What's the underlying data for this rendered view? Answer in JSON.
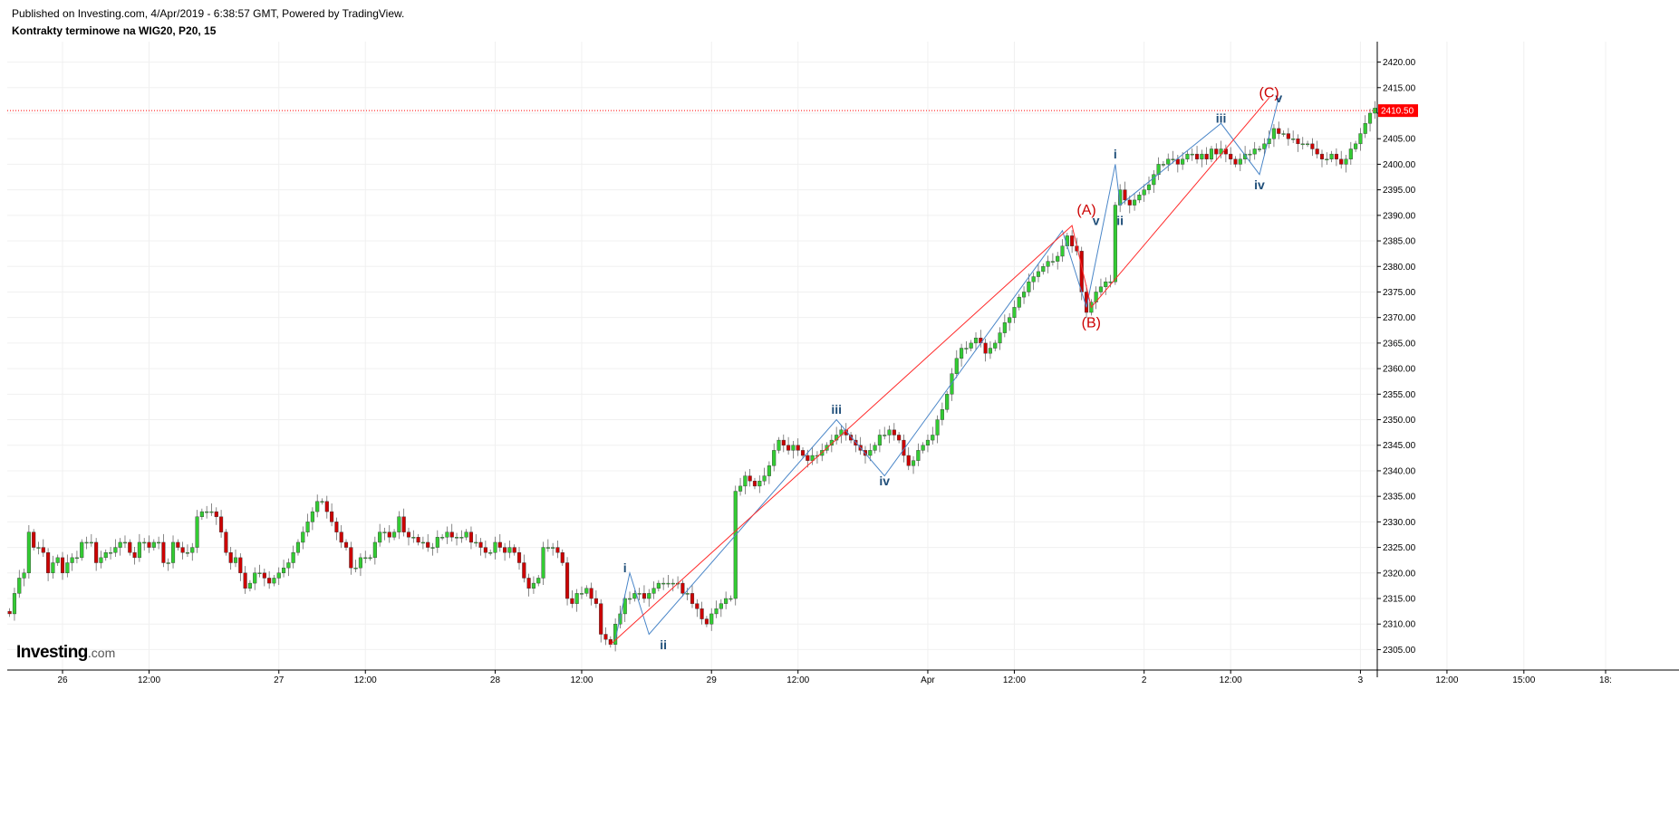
{
  "header": {
    "published_line": "Published on Investing.com, 4/Apr/2019 - 6:38:57 GMT, Powered by TradingView.",
    "symbol_line": "Kontrakty terminowe na WIG20, P20, 15"
  },
  "logo": {
    "brand": "Investing",
    "suffix": ".com"
  },
  "colors": {
    "up": "#33cc33",
    "down": "#cc0000",
    "grid": "#f0f0f0",
    "price_line": "#ff0000",
    "wave_blue": "#4a86c8",
    "wave_red": "#ff2b2b",
    "label_blue": "#1f4e79",
    "label_red": "#cc0000"
  },
  "chart_data": {
    "type": "candlestick",
    "title": "Kontrakty terminowe na WIG20, P20, 15",
    "interval": "15",
    "ylim": [
      2301,
      2424
    ],
    "y_ticks": [
      2305,
      2310,
      2315,
      2320,
      2325,
      2330,
      2335,
      2340,
      2345,
      2350,
      2355,
      2360,
      2365,
      2370,
      2375,
      2380,
      2385,
      2390,
      2395,
      2400,
      2405,
      2410,
      2415,
      2420
    ],
    "y_tick_labels": [
      "2305.00",
      "2310.00",
      "2315.00",
      "2320.00",
      "2325.00",
      "2330.00",
      "2335.00",
      "2340.00",
      "2345.00",
      "2350.00",
      "2355.00",
      "2360.00",
      "2365.00",
      "2370.00",
      "2375.00",
      "2380.00",
      "2385.00",
      "2390.00",
      "2395.00",
      "2400.00",
      "2405.00",
      "2410.00",
      "2415.00",
      "2420.00"
    ],
    "x_ticks": [
      {
        "label": "26",
        "bar": 11
      },
      {
        "label": "12:00",
        "bar": 29
      },
      {
        "label": "27",
        "bar": 56
      },
      {
        "label": "12:00",
        "bar": 74
      },
      {
        "label": "28",
        "bar": 101
      },
      {
        "label": "12:00",
        "bar": 119
      },
      {
        "label": "29",
        "bar": 146
      },
      {
        "label": "12:00",
        "bar": 164
      },
      {
        "label": "Apr",
        "bar": 191
      },
      {
        "label": "12:00",
        "bar": 209
      },
      {
        "label": "2",
        "bar": 236
      },
      {
        "label": "12:00",
        "bar": 254
      },
      {
        "label": "3",
        "bar": 281
      },
      {
        "label": "12:00",
        "bar": 299
      },
      {
        "label": "15:00",
        "bar": 315
      },
      {
        "label": "18:",
        "bar": 332
      }
    ],
    "last_price": 2410.5,
    "last_price_label": "2410.50",
    "closes": [
      2312,
      2316,
      2319,
      2320,
      2328,
      2325,
      2325,
      2324,
      2320,
      2322,
      2323,
      2320,
      2322,
      2323,
      2323,
      2326,
      2326,
      2326,
      2322,
      2323,
      2324,
      2324,
      2325,
      2326,
      2326,
      2324,
      2323,
      2326,
      2326,
      2325,
      2326,
      2326,
      2322,
      2322,
      2326,
      2325,
      2324,
      2324,
      2325,
      2331,
      2332,
      2332,
      2332,
      2331,
      2328,
      2324,
      2322,
      2323,
      2320,
      2317,
      2318,
      2320,
      2320,
      2319,
      2318,
      2319,
      2320,
      2321,
      2322,
      2324,
      2326,
      2328,
      2330,
      2332,
      2334,
      2334,
      2332,
      2330,
      2328,
      2326,
      2325,
      2321,
      2321,
      2323,
      2323,
      2323,
      2326,
      2328,
      2328,
      2327,
      2328,
      2331,
      2328,
      2327,
      2327,
      2326,
      2326,
      2325,
      2325,
      2327,
      2327,
      2328,
      2327,
      2327,
      2327,
      2328,
      2326,
      2326,
      2325,
      2324,
      2324,
      2326,
      2325,
      2324,
      2325,
      2324,
      2322,
      2319,
      2317,
      2318,
      2319,
      2325,
      2325,
      2325,
      2324,
      2322,
      2315,
      2314,
      2316,
      2316,
      2317,
      2315,
      2314,
      2308,
      2307,
      2306,
      2310,
      2312,
      2315,
      2315,
      2316,
      2316,
      2315,
      2316,
      2317,
      2318,
      2318,
      2318,
      2318,
      2318,
      2316,
      2316,
      2314,
      2313,
      2311,
      2310,
      2312,
      2313,
      2314,
      2315,
      2315,
      2336,
      2337,
      2339,
      2338,
      2337,
      2338,
      2339,
      2341,
      2344,
      2346,
      2345,
      2344,
      2345,
      2344,
      2343,
      2342,
      2343,
      2343,
      2344,
      2345,
      2346,
      2347,
      2348,
      2347,
      2346,
      2345,
      2344,
      2343,
      2344,
      2345,
      2347,
      2347,
      2348,
      2347,
      2346,
      2343,
      2341,
      2342,
      2344,
      2345,
      2346,
      2347,
      2350,
      2352,
      2355,
      2359,
      2362,
      2364,
      2364,
      2365,
      2366,
      2365,
      2363,
      2364,
      2365,
      2367,
      2369,
      2370,
      2372,
      2374,
      2375,
      2377,
      2378,
      2379,
      2380,
      2381,
      2381,
      2382,
      2384,
      2386,
      2384,
      2383,
      2375,
      2371,
      2373,
      2375,
      2376,
      2377,
      2377,
      2392,
      2395,
      2393,
      2392,
      2393,
      2394,
      2395,
      2396,
      2398,
      2400,
      2400,
      2401,
      2401,
      2400,
      2401,
      2402,
      2402,
      2401,
      2402,
      2401,
      2403,
      2402,
      2403,
      2402,
      2401,
      2400,
      2401,
      2402,
      2402,
      2403,
      2403,
      2404,
      2405,
      2407,
      2406,
      2406,
      2405,
      2405,
      2404,
      2404,
      2404,
      2403,
      2402,
      2401,
      2401,
      2402,
      2401,
      2400,
      2401,
      2403,
      2404,
      2406,
      2408,
      2410,
      2411
    ],
    "ohlc_rule": "open = previous close; high/low = max/min(open, close) plus a small wick",
    "wave_labels": [
      {
        "text": "i",
        "color": "blue",
        "bar": 128,
        "price": 2321
      },
      {
        "text": "ii",
        "color": "blue",
        "bar": 136,
        "price": 2306
      },
      {
        "text": "iii",
        "color": "blue",
        "bar": 172,
        "price": 2352
      },
      {
        "text": "iv",
        "color": "blue",
        "bar": 182,
        "price": 2338
      },
      {
        "text": "v",
        "color": "blue",
        "bar": 226,
        "price": 2389
      },
      {
        "text": "i",
        "color": "blue",
        "bar": 230,
        "price": 2402
      },
      {
        "text": "ii",
        "color": "blue",
        "bar": 231,
        "price": 2389
      },
      {
        "text": "iii",
        "color": "blue",
        "bar": 252,
        "price": 2409
      },
      {
        "text": "iv",
        "color": "blue",
        "bar": 260,
        "price": 2396
      },
      {
        "text": "v",
        "color": "blue",
        "bar": 264,
        "price": 2413
      },
      {
        "text": "(A)",
        "color": "red",
        "bar": 224,
        "price": 2391
      },
      {
        "text": "(B)",
        "color": "red",
        "bar": 225,
        "price": 2369
      },
      {
        "text": "(C)",
        "color": "red",
        "bar": 262,
        "price": 2414
      }
    ],
    "wave_lines": [
      {
        "color": "blue",
        "points": [
          [
            126,
            2307
          ],
          [
            129,
            2320
          ],
          [
            133,
            2308
          ],
          [
            172,
            2350
          ],
          [
            182,
            2339
          ],
          [
            219,
            2387
          ],
          [
            224,
            2372
          ],
          [
            230,
            2400
          ],
          [
            231,
            2392
          ],
          [
            252,
            2408
          ],
          [
            260,
            2398
          ],
          [
            264,
            2413
          ]
        ]
      },
      {
        "color": "red",
        "points": [
          [
            125,
            2306
          ],
          [
            221,
            2388
          ],
          [
            225,
            2372
          ],
          [
            262,
            2413
          ]
        ]
      }
    ]
  }
}
